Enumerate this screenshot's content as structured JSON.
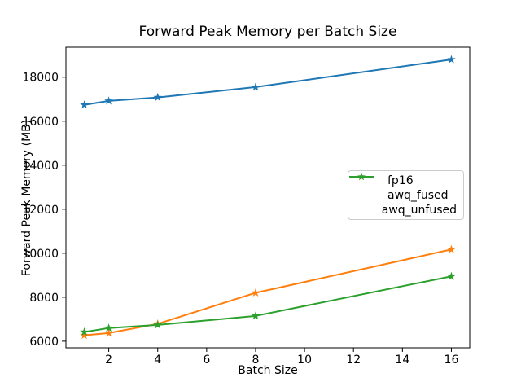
{
  "figure": {
    "background": "#ffffff",
    "text_color": "#000000",
    "spine_color": "#000000"
  },
  "chart_data": {
    "type": "line",
    "title": "Forward Peak Memory per Batch Size",
    "xlabel": "Batch Size",
    "ylabel": "Forward Peak Memory (MB)",
    "x": [
      1,
      2,
      4,
      8,
      16
    ],
    "series": [
      {
        "name": "fp16",
        "color": "#1f77b4",
        "marker": "star",
        "values": [
          16740,
          16920,
          17080,
          17550,
          18800
        ]
      },
      {
        "name": "awq_fused",
        "color": "#ff7f0e",
        "marker": "star",
        "values": [
          6270,
          6370,
          6790,
          8200,
          10170
        ]
      },
      {
        "name": "awq_unfused",
        "color": "#2ca02c",
        "marker": "star",
        "values": [
          6420,
          6600,
          6740,
          7150,
          8950
        ]
      }
    ],
    "xlim": [
      0.25,
      16.75
    ],
    "ylim": [
      5700,
      19360
    ],
    "xticks": [
      2,
      4,
      6,
      8,
      10,
      12,
      14,
      16
    ],
    "yticks": [
      6000,
      8000,
      10000,
      12000,
      14000,
      16000,
      18000
    ],
    "grid": false,
    "legend_position": "center right"
  }
}
